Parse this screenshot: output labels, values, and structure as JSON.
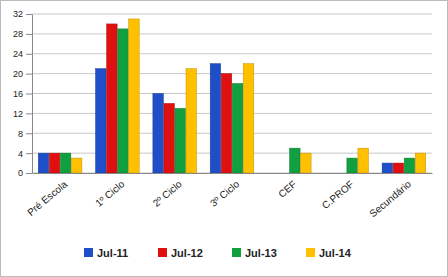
{
  "chart_data": {
    "type": "bar",
    "categories": [
      "Pré Escola",
      "1º Ciclo",
      "2º Ciclo",
      "3º Ciclo",
      "CEF",
      "C.PROF",
      "Secundário"
    ],
    "series": [
      {
        "name": "Jul-11",
        "color": "#1f4fc8",
        "values": [
          4,
          21,
          16,
          22,
          0,
          0,
          2
        ]
      },
      {
        "name": "Jul-12",
        "color": "#e01010",
        "values": [
          4,
          30,
          14,
          20,
          0,
          0,
          2
        ]
      },
      {
        "name": "Jul-13",
        "color": "#10a040",
        "values": [
          4,
          29,
          13,
          18,
          5,
          3,
          3
        ]
      },
      {
        "name": "Jul-14",
        "color": "#ffc000",
        "values": [
          3,
          31,
          21,
          22,
          4,
          5,
          4
        ]
      }
    ],
    "ylim": [
      0,
      32
    ],
    "yticks": [
      0,
      4,
      8,
      12,
      16,
      20,
      24,
      28,
      32
    ],
    "grid": true,
    "legend": "bottom"
  }
}
